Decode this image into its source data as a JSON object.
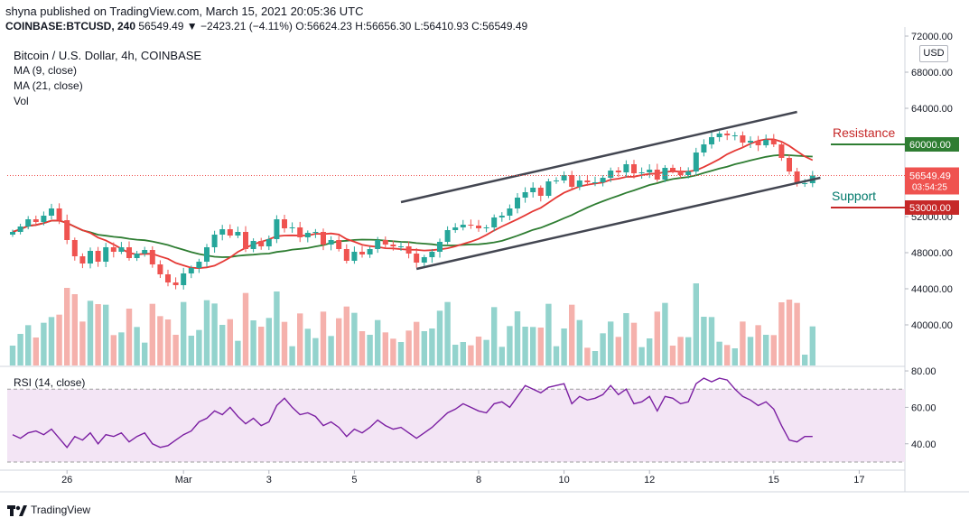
{
  "header": {
    "publisher_line": "shyna published on TradingView.com, March 15, 2021 20:05:36 UTC",
    "symbol_exchange": "COINBASE:BTCUSD, 240",
    "last": "56549.49",
    "change": "−2423.21 (−4.11%)",
    "ohlc": {
      "O": "56624.23",
      "H": "56656.30",
      "L": "56410.93",
      "C": "56549.49"
    }
  },
  "legend": {
    "title": "Bitcoin / U.S. Dollar, 4h, COINBASE",
    "ma9": "MA (9, close)",
    "ma21": "MA (21, close)",
    "vol": "Vol"
  },
  "footer": {
    "brand": "TradingView"
  },
  "colors": {
    "up": "#26a69a",
    "down": "#ef5350",
    "ma9": "#e53935",
    "ma21": "#2e7d32",
    "vol_up": "#80cbc4",
    "vol_down": "#f3a39e",
    "rsi": "#7b1fa2",
    "rsi_band": "#f3e5f5"
  },
  "chart_data": [
    {
      "type": "candlestick",
      "title": "Bitcoin / U.S. Dollar, 4h, COINBASE",
      "currency": "USD",
      "ylim": [
        35500,
        72000
      ],
      "y_ticks": [
        40000,
        44000,
        48000,
        52000,
        56000,
        60000,
        64000,
        68000,
        72000
      ],
      "y_tick_labels": [
        "40000.00",
        "44000.00",
        "48000.00",
        "52000.00",
        "56000.00",
        "60000.00",
        "64000.00",
        "68000.00",
        "72000.00"
      ],
      "x_ticks": [
        "26",
        "Mar",
        "3",
        "5",
        "8",
        "10",
        "12",
        "15",
        "17"
      ],
      "last_price": {
        "value": 56549.49,
        "label": "56549.49",
        "countdown": "03:54:25"
      },
      "close": [
        50300,
        50900,
        51700,
        51400,
        52100,
        52900,
        51600,
        49400,
        47600,
        46800,
        48200,
        47000,
        48600,
        48100,
        48600,
        47400,
        47900,
        48300,
        46700,
        45600,
        44700,
        44400,
        45700,
        46300,
        47000,
        48600,
        50000,
        50600,
        49900,
        50300,
        48400,
        49300,
        48700,
        49500,
        51700,
        50700,
        50800,
        49700,
        50200,
        50300,
        48900,
        49400,
        48400,
        47100,
        48100,
        47800,
        48400,
        49400,
        48900,
        48700,
        48700,
        47900,
        46900,
        47500,
        48100,
        49200,
        50500,
        50800,
        51100,
        51000,
        50700,
        50800,
        51900,
        52100,
        52900,
        54100,
        54700,
        55200,
        54300,
        55900,
        56000,
        56600,
        55300,
        56000,
        55800,
        55800,
        56300,
        57100,
        56900,
        57800,
        56800,
        56900,
        57200,
        56100,
        57400,
        57100,
        56600,
        57000,
        59100,
        60000,
        60800,
        61200,
        61000,
        61000,
        60200,
        60400,
        59900,
        60500,
        60000,
        58500,
        57000,
        55700,
        55700,
        56549
      ],
      "rsi": {
        "label": "RSI (14, close)",
        "ylim": [
          27,
          82
        ],
        "levels": [
          70,
          30
        ],
        "y_tick_labels": [
          "40.00",
          "60.00",
          "80.00"
        ],
        "values": [
          45,
          43,
          46,
          47,
          45,
          48,
          43,
          38,
          44,
          42,
          46,
          40,
          45,
          44,
          46,
          41,
          44,
          46,
          40,
          38,
          39,
          42,
          45,
          47,
          52,
          54,
          58,
          56,
          60,
          55,
          51,
          54,
          50,
          52,
          61,
          65,
          60,
          56,
          57,
          55,
          50,
          52,
          49,
          44,
          48,
          46,
          49,
          53,
          50,
          48,
          49,
          46,
          43,
          46,
          49,
          53,
          57,
          59,
          62,
          60,
          58,
          57,
          62,
          63,
          60,
          66,
          72,
          70,
          68,
          71,
          72,
          73,
          62,
          66,
          64,
          65,
          67,
          72,
          67,
          70,
          62,
          63,
          66,
          58,
          66,
          65,
          62,
          63,
          73,
          76,
          74,
          76,
          75,
          70,
          66,
          64,
          61,
          63,
          59,
          50,
          42,
          41,
          44,
          44
        ]
      },
      "annotations": [
        {
          "text": "Resistance",
          "level": 60000,
          "label": "60000.00",
          "color": "#2e7d32",
          "text_color": "#c62828"
        },
        {
          "text": "Support",
          "level": 53000,
          "label": "53000.00",
          "color": "#c62828",
          "text_color": "#00796b"
        }
      ]
    }
  ]
}
